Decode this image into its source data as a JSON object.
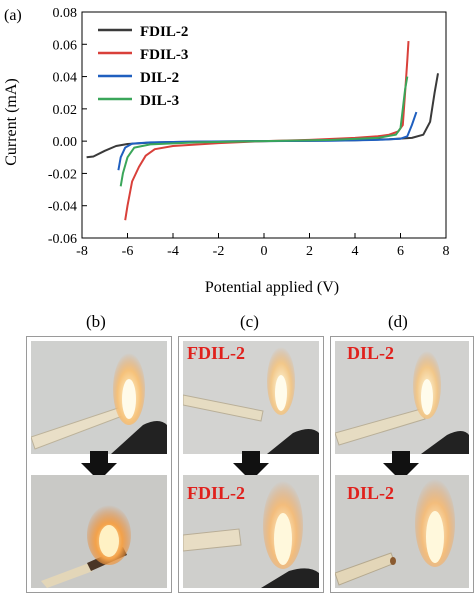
{
  "chart_data": {
    "type": "line",
    "panel_label": "(a)",
    "xlabel": "Potential applied (V)",
    "ylabel": "Current (mA)",
    "xlim": [
      -8,
      8
    ],
    "ylim": [
      -0.06,
      0.08
    ],
    "x_ticks": [
      -8,
      -6,
      -4,
      -2,
      0,
      2,
      4,
      6,
      8
    ],
    "x_tick_labels": [
      "-8",
      "-6",
      "-4",
      "-2",
      "0",
      "2",
      "4",
      "6",
      "8"
    ],
    "y_ticks": [
      -0.06,
      -0.04,
      -0.02,
      0.0,
      0.02,
      0.04,
      0.06,
      0.08
    ],
    "y_tick_labels": [
      "-0.06",
      "-0.04",
      "-0.02",
      "0.00",
      "0.02",
      "0.04",
      "0.06",
      "0.08"
    ],
    "legend_position": "top-left",
    "series": [
      {
        "name": "FDIL-2",
        "color": "#3a3a3a",
        "points": [
          [
            -7.8,
            -0.01
          ],
          [
            -7.5,
            -0.0095
          ],
          [
            -7.0,
            -0.006
          ],
          [
            -6.5,
            -0.003
          ],
          [
            -6.0,
            -0.0018
          ],
          [
            -5.0,
            -0.0009
          ],
          [
            -4.0,
            -0.0005
          ],
          [
            -2.0,
            -0.0002
          ],
          [
            0.0,
            0.0
          ],
          [
            2.0,
            0.0002
          ],
          [
            4.0,
            0.0006
          ],
          [
            5.5,
            0.0012
          ],
          [
            6.5,
            0.002
          ],
          [
            7.0,
            0.004
          ],
          [
            7.3,
            0.012
          ],
          [
            7.5,
            0.03
          ],
          [
            7.65,
            0.042
          ]
        ]
      },
      {
        "name": "FDIL-3",
        "color": "#d9403a",
        "points": [
          [
            -6.1,
            -0.049
          ],
          [
            -6.0,
            -0.04
          ],
          [
            -5.8,
            -0.025
          ],
          [
            -5.5,
            -0.016
          ],
          [
            -5.2,
            -0.009
          ],
          [
            -4.8,
            -0.005
          ],
          [
            -4.0,
            -0.003
          ],
          [
            -2.0,
            -0.0012
          ],
          [
            0.0,
            0.0
          ],
          [
            2.0,
            0.0008
          ],
          [
            4.0,
            0.002
          ],
          [
            5.0,
            0.003
          ],
          [
            5.5,
            0.004
          ],
          [
            5.9,
            0.006
          ],
          [
            6.1,
            0.01
          ],
          [
            6.2,
            0.03
          ],
          [
            6.3,
            0.05
          ],
          [
            6.35,
            0.062
          ]
        ]
      },
      {
        "name": "DIL-2",
        "color": "#1f5fbf",
        "points": [
          [
            -6.4,
            -0.018
          ],
          [
            -6.3,
            -0.01
          ],
          [
            -6.1,
            -0.004
          ],
          [
            -5.8,
            -0.0015
          ],
          [
            -5.0,
            -0.0008
          ],
          [
            -3.0,
            -0.0003
          ],
          [
            0.0,
            0.0
          ],
          [
            3.0,
            0.0003
          ],
          [
            5.0,
            0.0008
          ],
          [
            6.0,
            0.0015
          ],
          [
            6.3,
            0.003
          ],
          [
            6.5,
            0.01
          ],
          [
            6.7,
            0.018
          ]
        ]
      },
      {
        "name": "DIL-3",
        "color": "#3aa65a",
        "points": [
          [
            -6.3,
            -0.028
          ],
          [
            -6.2,
            -0.02
          ],
          [
            -6.0,
            -0.01
          ],
          [
            -5.7,
            -0.004
          ],
          [
            -5.0,
            -0.002
          ],
          [
            -3.0,
            -0.0008
          ],
          [
            0.0,
            0.0
          ],
          [
            3.0,
            0.0008
          ],
          [
            5.0,
            0.002
          ],
          [
            5.8,
            0.004
          ],
          [
            6.0,
            0.008
          ],
          [
            6.1,
            0.02
          ],
          [
            6.2,
            0.032
          ],
          [
            6.3,
            0.04
          ]
        ]
      }
    ]
  },
  "photos": {
    "panel_b": {
      "label": "(b)"
    },
    "panel_c": {
      "label": "(c)",
      "top_text": "FDIL-2",
      "bottom_text": "FDIL-2"
    },
    "panel_d": {
      "label": "(d)",
      "top_text": "DIL-2",
      "bottom_text": "DIL-2"
    }
  }
}
